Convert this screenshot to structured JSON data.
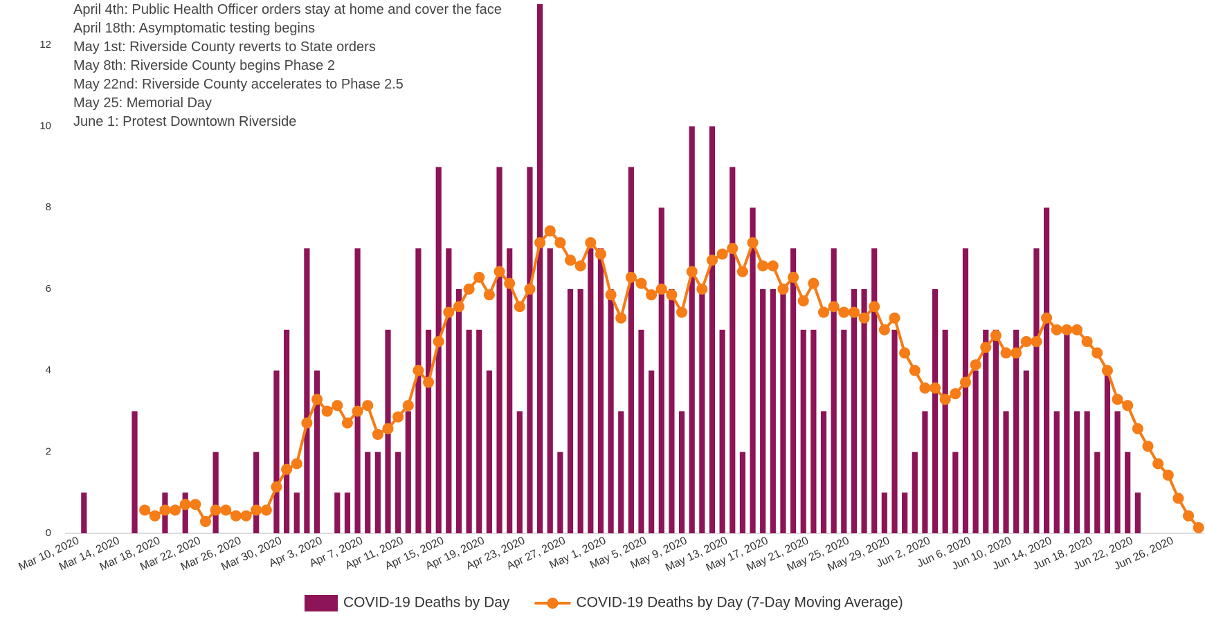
{
  "chart_data": {
    "type": "bar_line",
    "annotations": [
      "April 4th: Public Health Officer orders stay at home and cover the face",
      "April 18th: Asymptomatic testing begins",
      "May 1st: Riverside County reverts to State orders",
      "May 8th: Riverside County begins Phase 2",
      "May 22nd: Riverside County accelerates to Phase 2.5",
      "May 25: Memorial Day",
      "June 1: Protest Downtown Riverside"
    ],
    "categories": [
      "Mar 10, 2020",
      null,
      null,
      null,
      "Mar 14, 2020",
      null,
      null,
      null,
      "Mar 18, 2020",
      null,
      null,
      null,
      "Mar 22, 2020",
      null,
      null,
      null,
      "Mar 26, 2020",
      null,
      null,
      null,
      "Mar 30, 2020",
      null,
      null,
      null,
      "Apr 3, 2020",
      null,
      null,
      null,
      "Apr 7, 2020",
      null,
      null,
      null,
      "Apr 11, 2020",
      null,
      null,
      null,
      "Apr 15, 2020",
      null,
      null,
      null,
      "Apr 19, 2020",
      null,
      null,
      null,
      "Apr 23, 2020",
      null,
      null,
      null,
      "Apr 27, 2020",
      null,
      null,
      null,
      "May 1, 2020",
      null,
      null,
      null,
      "May 5, 2020",
      null,
      null,
      null,
      "May 9, 2020",
      null,
      null,
      null,
      "May 13, 2020",
      null,
      null,
      null,
      "May 17, 2020",
      null,
      null,
      null,
      "May 21, 2020",
      null,
      null,
      null,
      "May 25, 2020",
      null,
      null,
      null,
      "May 29, 2020",
      null,
      null,
      null,
      "Jun 2, 2020",
      null,
      null,
      null,
      "Jun 6, 2020",
      null,
      null,
      null,
      "Jun 10, 2020",
      null,
      null,
      null,
      "Jun 14, 2020",
      null,
      null,
      null,
      "Jun 18, 2020",
      null,
      null,
      null,
      "Jun 22, 2020",
      null,
      null,
      null,
      "Jun 26, 2020",
      null,
      null
    ],
    "series": [
      {
        "name": "COVID-19 Deaths by Day",
        "type": "bar",
        "color": "#8c1457",
        "values": [
          1,
          0,
          0,
          0,
          0,
          3,
          0,
          0,
          1,
          0,
          1,
          0,
          0,
          2,
          0,
          0,
          0,
          2,
          0,
          4,
          5,
          1,
          7,
          4,
          0,
          1,
          1,
          7,
          2,
          2,
          5,
          2,
          3,
          7,
          5,
          9,
          7,
          6,
          5,
          5,
          4,
          9,
          7,
          3,
          9,
          13,
          7,
          2,
          6,
          6,
          7,
          7,
          6,
          3,
          9,
          5,
          4,
          8,
          6,
          3,
          10,
          6,
          10,
          5,
          9,
          2,
          8,
          6,
          6,
          6,
          7,
          5,
          5,
          3,
          7,
          5,
          6,
          6,
          7,
          1,
          5,
          1,
          2,
          3,
          6,
          5,
          2,
          7,
          4,
          5,
          5,
          3,
          5,
          4,
          7,
          8,
          3,
          5,
          3,
          3,
          2,
          4,
          3,
          2,
          1,
          0,
          0,
          0,
          0,
          0,
          0
        ]
      },
      {
        "name": "COVID-19 Deaths by Day (7-Day Moving Average)",
        "type": "line",
        "color": "#f57c16",
        "values": [
          null,
          null,
          null,
          null,
          null,
          null,
          0.57,
          0.43,
          0.57,
          0.57,
          0.71,
          0.71,
          0.29,
          0.57,
          0.57,
          0.43,
          0.43,
          0.57,
          0.57,
          1.14,
          1.57,
          1.71,
          2.71,
          3.29,
          3.0,
          3.14,
          2.71,
          3.0,
          3.14,
          2.43,
          2.57,
          2.86,
          3.14,
          4.0,
          3.71,
          4.71,
          5.43,
          5.57,
          6.0,
          6.29,
          5.86,
          6.43,
          6.14,
          5.57,
          6.0,
          7.14,
          7.43,
          7.14,
          6.71,
          6.57,
          7.14,
          6.86,
          5.86,
          5.29,
          6.29,
          6.14,
          5.86,
          6.0,
          5.86,
          5.43,
          6.43,
          6.0,
          6.71,
          6.86,
          7.0,
          6.43,
          7.14,
          6.57,
          6.57,
          6.0,
          6.29,
          5.71,
          6.14,
          5.43,
          5.57,
          5.43,
          5.43,
          5.29,
          5.57,
          5.0,
          5.29,
          4.43,
          4.0,
          3.57,
          3.57,
          3.29,
          3.43,
          3.71,
          4.14,
          4.57,
          4.86,
          4.43,
          4.43,
          4.71,
          4.71,
          5.29,
          5.0,
          5.0,
          5.0,
          4.71,
          4.43,
          4.0,
          3.29,
          3.14,
          2.57,
          2.14,
          1.71,
          1.43,
          0.86,
          0.43,
          0.14
        ]
      }
    ],
    "ylim": [
      0,
      13
    ],
    "yticks": [
      0,
      2,
      4,
      6,
      8,
      10,
      12
    ],
    "grid": false,
    "legend": "bottom"
  }
}
